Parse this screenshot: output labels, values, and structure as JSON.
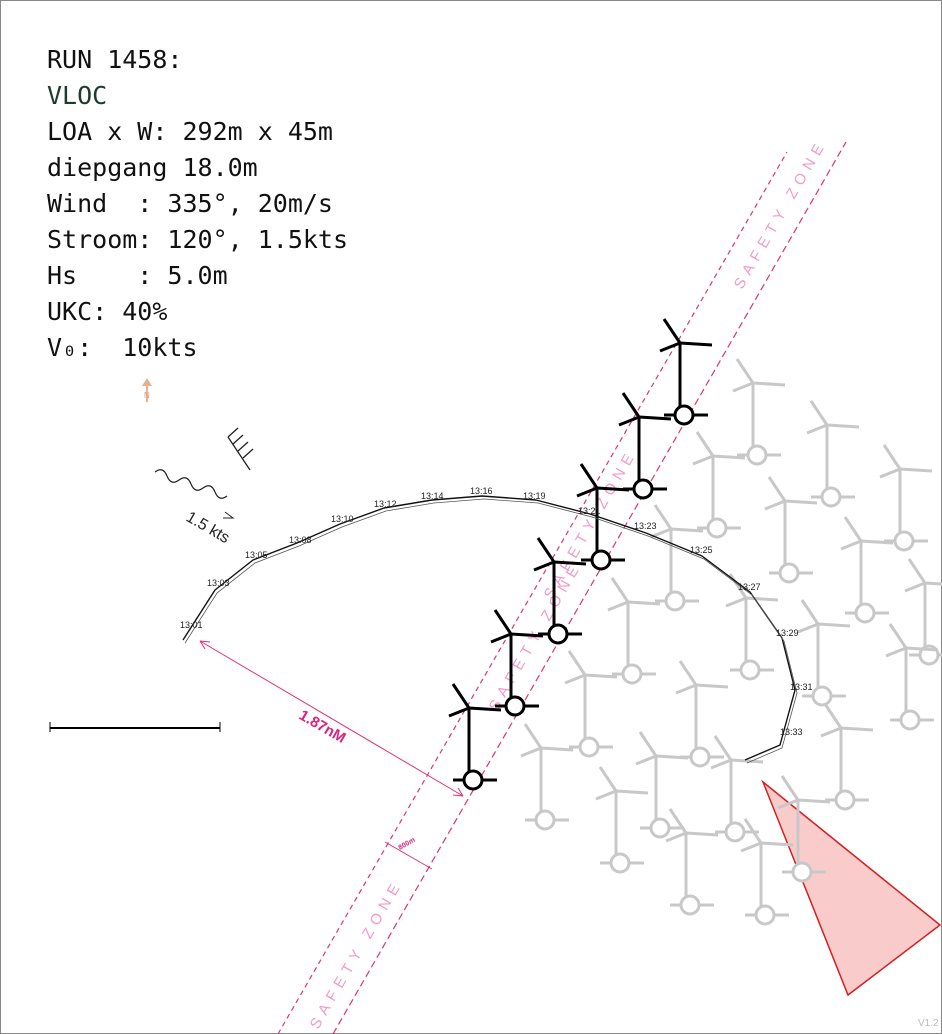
{
  "info": {
    "title": "RUN 1458:",
    "vessel": "VLOC",
    "lines": [
      "LOA x W: 292m x 45m",
      "diepgang 18.0m",
      "Wind  : 335°, 20m/s",
      "Stroom: 120°, 1.5kts",
      "Hs    : 5.0m",
      "UKC: 40%",
      "V₀:  10kts"
    ]
  },
  "track": {
    "times": [
      "13:01",
      "13:03",
      "13:05",
      "13:08",
      "13:10",
      "13:12",
      "13:14",
      "13:16",
      "13:19",
      "13:21",
      "13:23",
      "13:25",
      "13:27",
      "13:29",
      "13:31",
      "13:33"
    ]
  },
  "annotations": {
    "distance": "1.87nM",
    "zone_width": "800m",
    "current": "1.5 kts",
    "north": "N",
    "version": "V1.2",
    "safety_zone_labels": [
      "SAFETY ZONE",
      "SAFETY ZONE",
      "SAFETY ZONE",
      "SAFETY ZONE"
    ]
  }
}
